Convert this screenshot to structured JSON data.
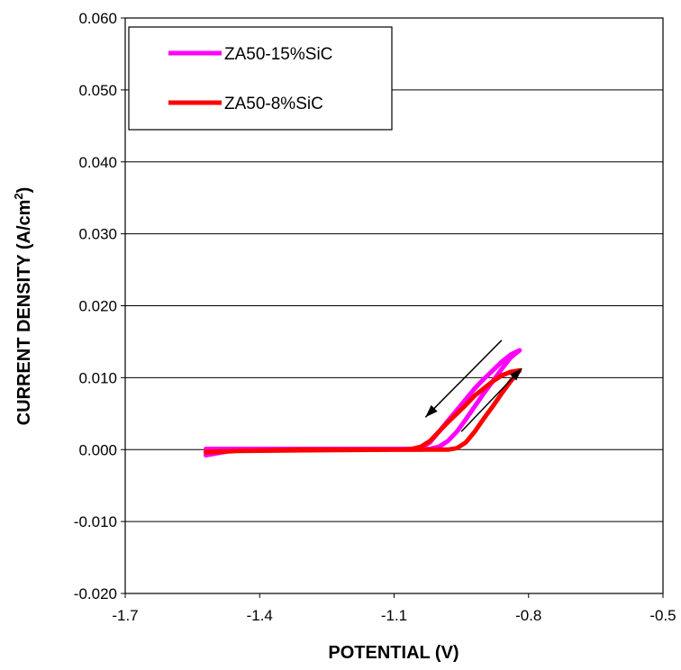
{
  "chart_data": {
    "type": "line",
    "xlabel": "POTENTIAL (V)",
    "ylabel": "CURRENT DENSITY (A/cm",
    "ylabel_sup": "2",
    "ylabel_close": ")",
    "xlim": [
      -1.7,
      -0.5
    ],
    "ylim": [
      -0.02,
      0.06
    ],
    "x_ticks": [
      "-1.7",
      "-1.4",
      "-1.1",
      "-0.8",
      "-0.5"
    ],
    "y_ticks": [
      "0.060",
      "0.050",
      "0.040",
      "0.030",
      "0.020",
      "0.010",
      "0.000",
      "-0.010",
      "-0.020"
    ],
    "grid": "horizontal",
    "legend_position": "top-left",
    "series": [
      {
        "name": "ZA50-15%SiC",
        "color": "#ff00ff",
        "x": [
          -1.52,
          -1.45,
          -1.3,
          -1.15,
          -1.08,
          -1.06,
          -1.04,
          -1.02,
          -1.0,
          -0.98,
          -0.96,
          -0.94,
          -0.92,
          -0.9,
          -0.88,
          -0.86,
          -0.84,
          -0.82,
          -0.84,
          -0.86,
          -0.88,
          -0.9,
          -0.92,
          -0.94,
          -0.96,
          -0.98,
          -1.0,
          -1.02,
          -1.04,
          -1.06,
          -1.1,
          -1.3,
          -1.45,
          -1.52
        ],
        "y": [
          0.0001,
          0.0001,
          0.0001,
          0.0001,
          0.0001,
          0.0001,
          0.0003,
          0.001,
          0.0025,
          0.004,
          0.0055,
          0.007,
          0.0085,
          0.0098,
          0.011,
          0.0122,
          0.0132,
          0.0138,
          0.0128,
          0.0112,
          0.0095,
          0.0078,
          0.006,
          0.0042,
          0.0025,
          0.0012,
          0.0004,
          0.0001,
          0.0,
          0.0,
          0.0,
          0.0,
          0.0,
          -0.0008
        ]
      },
      {
        "name": "ZA50-8%SiC",
        "color": "#ff0000",
        "x": [
          -1.52,
          -1.45,
          -1.3,
          -1.15,
          -1.08,
          -1.06,
          -1.04,
          -1.02,
          -1.0,
          -0.98,
          -0.96,
          -0.94,
          -0.92,
          -0.9,
          -0.88,
          -0.86,
          -0.84,
          -0.82,
          -0.84,
          -0.86,
          -0.88,
          -0.9,
          -0.92,
          -0.94,
          -0.96,
          -0.98,
          -1.0,
          -1.02,
          -1.04,
          -1.06,
          -1.1,
          -1.3,
          -1.45,
          -1.52
        ],
        "y": [
          -0.0003,
          -0.0002,
          0.0,
          0.0,
          0.0,
          0.0001,
          0.0004,
          0.0012,
          0.0025,
          0.0038,
          0.005,
          0.0062,
          0.0075,
          0.0085,
          0.0095,
          0.0103,
          0.0108,
          0.011,
          0.0095,
          0.0078,
          0.006,
          0.0043,
          0.0025,
          0.001,
          0.0002,
          0.0,
          0.0,
          0.0,
          0.0,
          0.0,
          0.0,
          -0.0001,
          -0.0002,
          -0.0004
        ]
      }
    ],
    "annotations": [
      {
        "type": "arrow",
        "direction": "down",
        "from": [
          -0.86,
          0.0152
        ],
        "to": [
          -1.03,
          0.0045
        ]
      },
      {
        "type": "arrow",
        "direction": "up",
        "from": [
          -0.95,
          0.0025
        ],
        "to": [
          -0.815,
          0.0113
        ]
      }
    ]
  }
}
